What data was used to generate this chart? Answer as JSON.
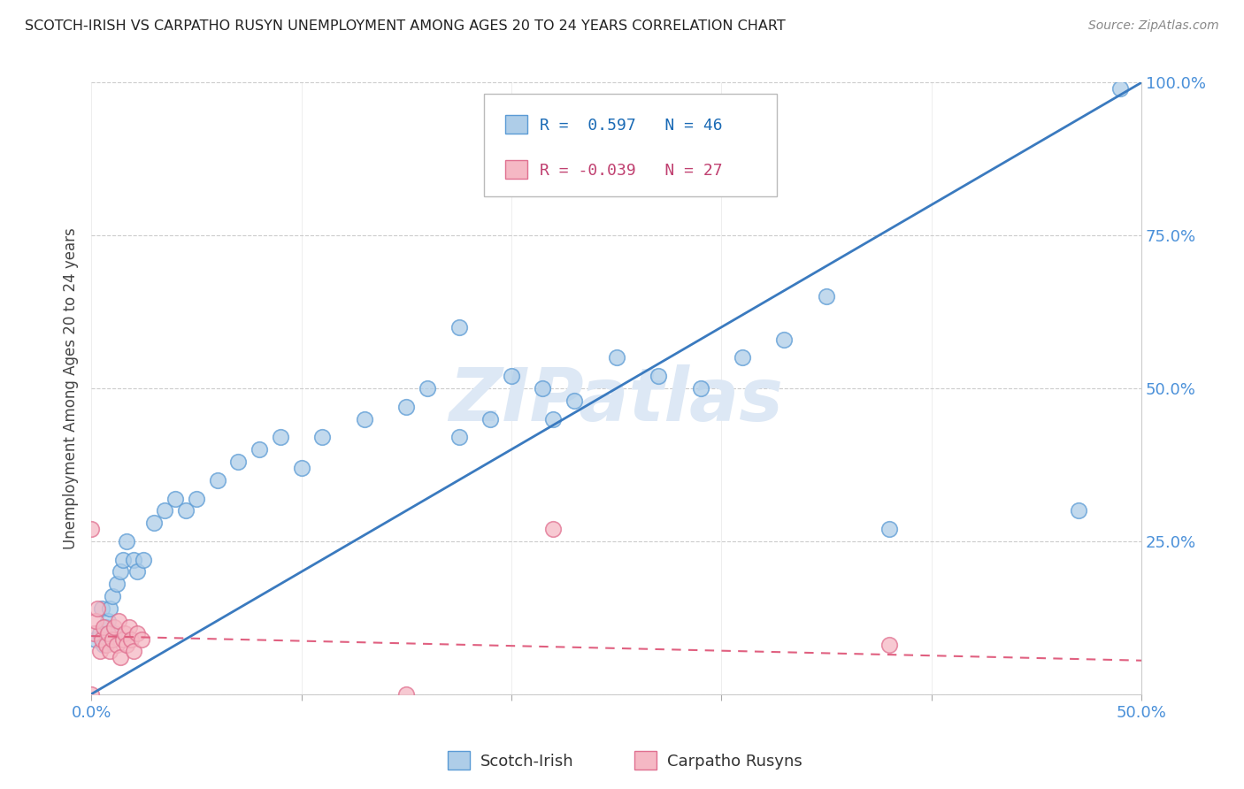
{
  "title": "SCOTCH-IRISH VS CARPATHO RUSYN UNEMPLOYMENT AMONG AGES 20 TO 24 YEARS CORRELATION CHART",
  "source": "Source: ZipAtlas.com",
  "ylabel": "Unemployment Among Ages 20 to 24 years",
  "xlim": [
    0.0,
    0.5
  ],
  "ylim": [
    0.0,
    1.0
  ],
  "scotch_irish_R": 0.597,
  "scotch_irish_N": 46,
  "carpatho_rusyn_R": -0.039,
  "carpatho_rusyn_N": 27,
  "scotch_irish_color": "#aecde8",
  "scotch_irish_edge_color": "#5b9bd5",
  "carpatho_rusyn_color": "#f5b8c4",
  "carpatho_rusyn_edge_color": "#e07090",
  "scotch_irish_line_color": "#3a7abf",
  "carpatho_rusyn_line_color": "#e06080",
  "background_color": "#ffffff",
  "grid_color": "#cccccc",
  "watermark_color": "#dde8f5",
  "tick_color": "#4a90d9",
  "scotch_irish_x": [
    0.002,
    0.004,
    0.005,
    0.006,
    0.007,
    0.008,
    0.009,
    0.01,
    0.011,
    0.012,
    0.014,
    0.015,
    0.017,
    0.02,
    0.022,
    0.025,
    0.03,
    0.035,
    0.04,
    0.045,
    0.05,
    0.06,
    0.07,
    0.08,
    0.09,
    0.1,
    0.11,
    0.13,
    0.15,
    0.16,
    0.175,
    0.19,
    0.2,
    0.215,
    0.23,
    0.25,
    0.27,
    0.29,
    0.31,
    0.33,
    0.175,
    0.22,
    0.35,
    0.38,
    0.47,
    0.49
  ],
  "scotch_irish_y": [
    0.09,
    0.1,
    0.14,
    0.08,
    0.11,
    0.12,
    0.14,
    0.16,
    0.1,
    0.18,
    0.2,
    0.22,
    0.25,
    0.22,
    0.2,
    0.22,
    0.28,
    0.3,
    0.32,
    0.3,
    0.32,
    0.35,
    0.38,
    0.4,
    0.42,
    0.37,
    0.42,
    0.45,
    0.47,
    0.5,
    0.42,
    0.45,
    0.52,
    0.5,
    0.48,
    0.55,
    0.52,
    0.5,
    0.55,
    0.58,
    0.6,
    0.45,
    0.65,
    0.27,
    0.3,
    0.99
  ],
  "carpatho_rusyn_x": [
    0.0,
    0.001,
    0.002,
    0.003,
    0.004,
    0.005,
    0.006,
    0.007,
    0.008,
    0.009,
    0.01,
    0.011,
    0.012,
    0.013,
    0.014,
    0.015,
    0.016,
    0.017,
    0.018,
    0.019,
    0.02,
    0.022,
    0.024,
    0.15,
    0.22,
    0.38,
    0.0
  ],
  "carpatho_rusyn_y": [
    0.27,
    0.1,
    0.12,
    0.14,
    0.07,
    0.09,
    0.11,
    0.08,
    0.1,
    0.07,
    0.09,
    0.11,
    0.08,
    0.12,
    0.06,
    0.09,
    0.1,
    0.08,
    0.11,
    0.09,
    0.07,
    0.1,
    0.09,
    0.0,
    0.27,
    0.08,
    0.0
  ],
  "si_line_x": [
    0.0,
    0.5
  ],
  "si_line_y": [
    0.0,
    1.0
  ],
  "cr_line_x": [
    0.0,
    0.5
  ],
  "cr_line_y": [
    0.095,
    0.055
  ]
}
